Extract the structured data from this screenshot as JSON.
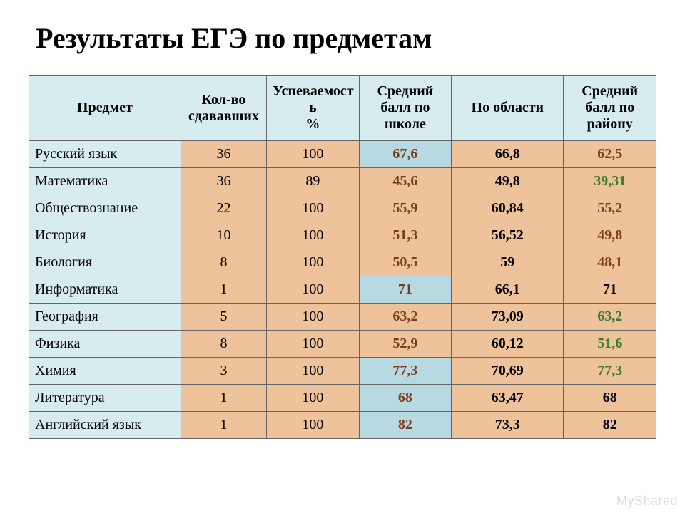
{
  "title": "Результаты ЕГЭ по предметам",
  "watermark": "MyShared",
  "colors": {
    "header_bg": "#d6ecee",
    "subject_bg": "#d6ecee",
    "orange_bg": "#eec29a",
    "blue_bg": "#b9d9e2",
    "text_black": "#000000",
    "text_brown": "#7a3d1c",
    "text_green": "#3d7a2a",
    "border": "#666666"
  },
  "columns": [
    "Предмет",
    "Кол-во сдававших",
    "Успеваемость %",
    "Средний балл по школе",
    "По области",
    "Средний балл по району"
  ],
  "column_header_lines": [
    [
      "Предмет"
    ],
    [
      "Кол-во",
      "сдававших"
    ],
    [
      "Успеваемост",
      "ь",
      "%"
    ],
    [
      "Средний",
      "балл по",
      "школе"
    ],
    [
      "По области"
    ],
    [
      "Средний",
      "балл по",
      "району"
    ]
  ],
  "rows": [
    {
      "subject": "Русский язык",
      "count": "36",
      "success": "100",
      "school": "67,6",
      "school_hl": true,
      "region": "66,8",
      "district": "62,5",
      "district_color": "brown"
    },
    {
      "subject": "Математика",
      "count": "36",
      "success": "89",
      "school": "45,6",
      "school_hl": false,
      "region": "49,8",
      "district": "39,31",
      "district_color": "green"
    },
    {
      "subject": "Обществознание",
      "count": "22",
      "success": "100",
      "school": "55,9",
      "school_hl": false,
      "region": "60,84",
      "district": "55,2",
      "district_color": "brown"
    },
    {
      "subject": "История",
      "count": "10",
      "success": "100",
      "school": "51,3",
      "school_hl": false,
      "region": "56,52",
      "district": "49,8",
      "district_color": "brown"
    },
    {
      "subject": "Биология",
      "count": "8",
      "success": "100",
      "school": "50,5",
      "school_hl": false,
      "region": "59",
      "district": "48,1",
      "district_color": "brown"
    },
    {
      "subject": "Информатика",
      "count": "1",
      "success": "100",
      "school": "71",
      "school_hl": true,
      "region": "66,1",
      "district": "71",
      "district_color": "black"
    },
    {
      "subject": "География",
      "count": "5",
      "success": "100",
      "school": "63,2",
      "school_hl": false,
      "region": "73,09",
      "district": "63,2",
      "district_color": "green"
    },
    {
      "subject": "Физика",
      "count": "8",
      "success": "100",
      "school": "52,9",
      "school_hl": false,
      "region": "60,12",
      "district": "51,6",
      "district_color": "green"
    },
    {
      "subject": "Химия",
      "count": "3",
      "success": "100",
      "school": "77,3",
      "school_hl": true,
      "region": "70,69",
      "district": "77,3",
      "district_color": "green"
    },
    {
      "subject": "Литература",
      "count": "1",
      "success": "100",
      "school": "68",
      "school_hl": true,
      "region": "63,47",
      "district": "68",
      "district_color": "black"
    },
    {
      "subject": "Английский язык",
      "count": "1",
      "success": "100",
      "school": "82",
      "school_hl": true,
      "region": "73,3",
      "district": "82",
      "district_color": "black"
    }
  ]
}
